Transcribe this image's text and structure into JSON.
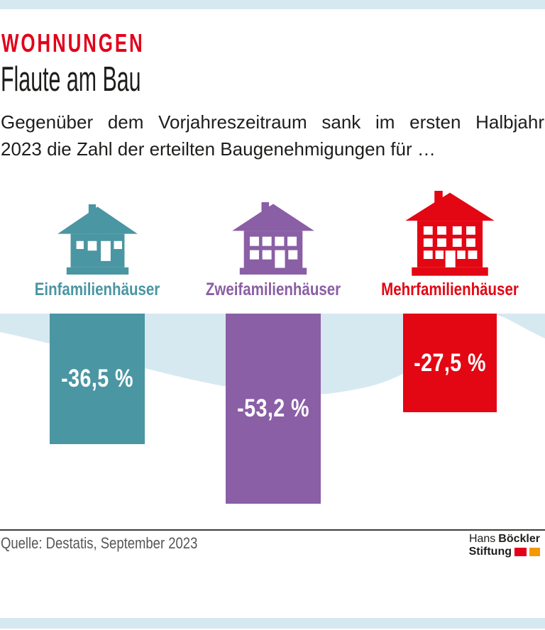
{
  "page": {
    "accent_bar_color": "#d7e9f0",
    "background": "#ffffff"
  },
  "header": {
    "kicker": "WOHNUNGEN",
    "kicker_color": "#e2001a",
    "title": "Flaute am Bau",
    "subtitle_line1": "Gegenüber dem Vorjahreszeitraum sank im ersten Halbjahr",
    "subtitle_line2": "2023 die Zahl der erteilten Baugenehmigungen für …"
  },
  "chart_data": {
    "type": "bar",
    "title": "Flaute am Bau",
    "subtitle": "Gegenüber dem Vorjahreszeitraum sank im ersten Halbjahr 2023 die Zahl der erteilten Baugenehmigungen für …",
    "orientation": "vertical-downward-from-zero-baseline",
    "unit": "%",
    "categories": [
      "Einfamilienhäuser",
      "Zweifamilienhäuser",
      "Mehrfamilienhäuser"
    ],
    "values": [
      -36.5,
      -53.2,
      -27.5
    ],
    "value_labels": [
      "-36,5 %",
      "-53,2 %",
      "-27,5 %"
    ],
    "colors": [
      "#4a96a2",
      "#8a5fa5",
      "#e30613"
    ],
    "icons": [
      "single-family-house",
      "two-family-house",
      "apartment-building"
    ],
    "grid": false,
    "legend": false,
    "decoration": "light-blue wave band behind bar tops"
  },
  "footer": {
    "source": "Quelle: Destatis, September 2023",
    "logo": {
      "line1_regular": "Hans",
      "line1_bold": "Böckler",
      "line2_bold": "Stiftung",
      "square_colors": [
        "#e2001a",
        "#f49800"
      ]
    }
  }
}
